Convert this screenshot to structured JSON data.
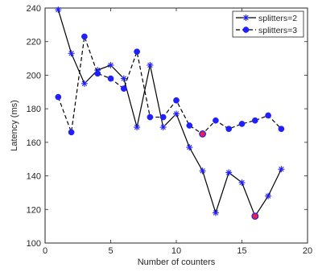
{
  "chart_data": {
    "type": "line",
    "title": "",
    "xlabel": "Number of counters",
    "ylabel": "Latency (ms)",
    "xlim": [
      0,
      20
    ],
    "ylim": [
      100,
      240
    ],
    "xticks": [
      "0",
      "5",
      "10",
      "15",
      "20"
    ],
    "yticks": [
      "100",
      "120",
      "140",
      "160",
      "180",
      "200",
      "220",
      "240"
    ],
    "grid": false,
    "legend_position": "top-right",
    "series": [
      {
        "name": "splitters=2",
        "line_style": "solid",
        "marker": "asterisk",
        "color": "#1f1fff",
        "x": [
          1,
          2,
          3,
          4,
          5,
          6,
          7,
          8,
          9,
          10,
          11,
          12,
          13,
          14,
          15,
          16,
          17,
          18
        ],
        "y": [
          239,
          213,
          195,
          203,
          206,
          198,
          169,
          206,
          169,
          177,
          157,
          143,
          118,
          142,
          136,
          116,
          128,
          144
        ]
      },
      {
        "name": "splitters=3",
        "line_style": "dashed",
        "marker": "circle",
        "color": "#1f1fff",
        "x": [
          1,
          2,
          3,
          4,
          5,
          6,
          7,
          8,
          9,
          10,
          11,
          12,
          13,
          14,
          15,
          16,
          17,
          18
        ],
        "y": [
          187,
          166,
          223,
          201,
          198,
          192,
          214,
          175,
          175,
          185,
          170,
          165,
          173,
          168,
          171,
          173,
          176,
          168
        ]
      }
    ],
    "highlighted_points": [
      {
        "series": "splitters=3",
        "x": 12,
        "y": 165,
        "color": "#e8204a"
      },
      {
        "series": "splitters=2",
        "x": 16,
        "y": 116,
        "color": "#e8204a"
      }
    ]
  }
}
